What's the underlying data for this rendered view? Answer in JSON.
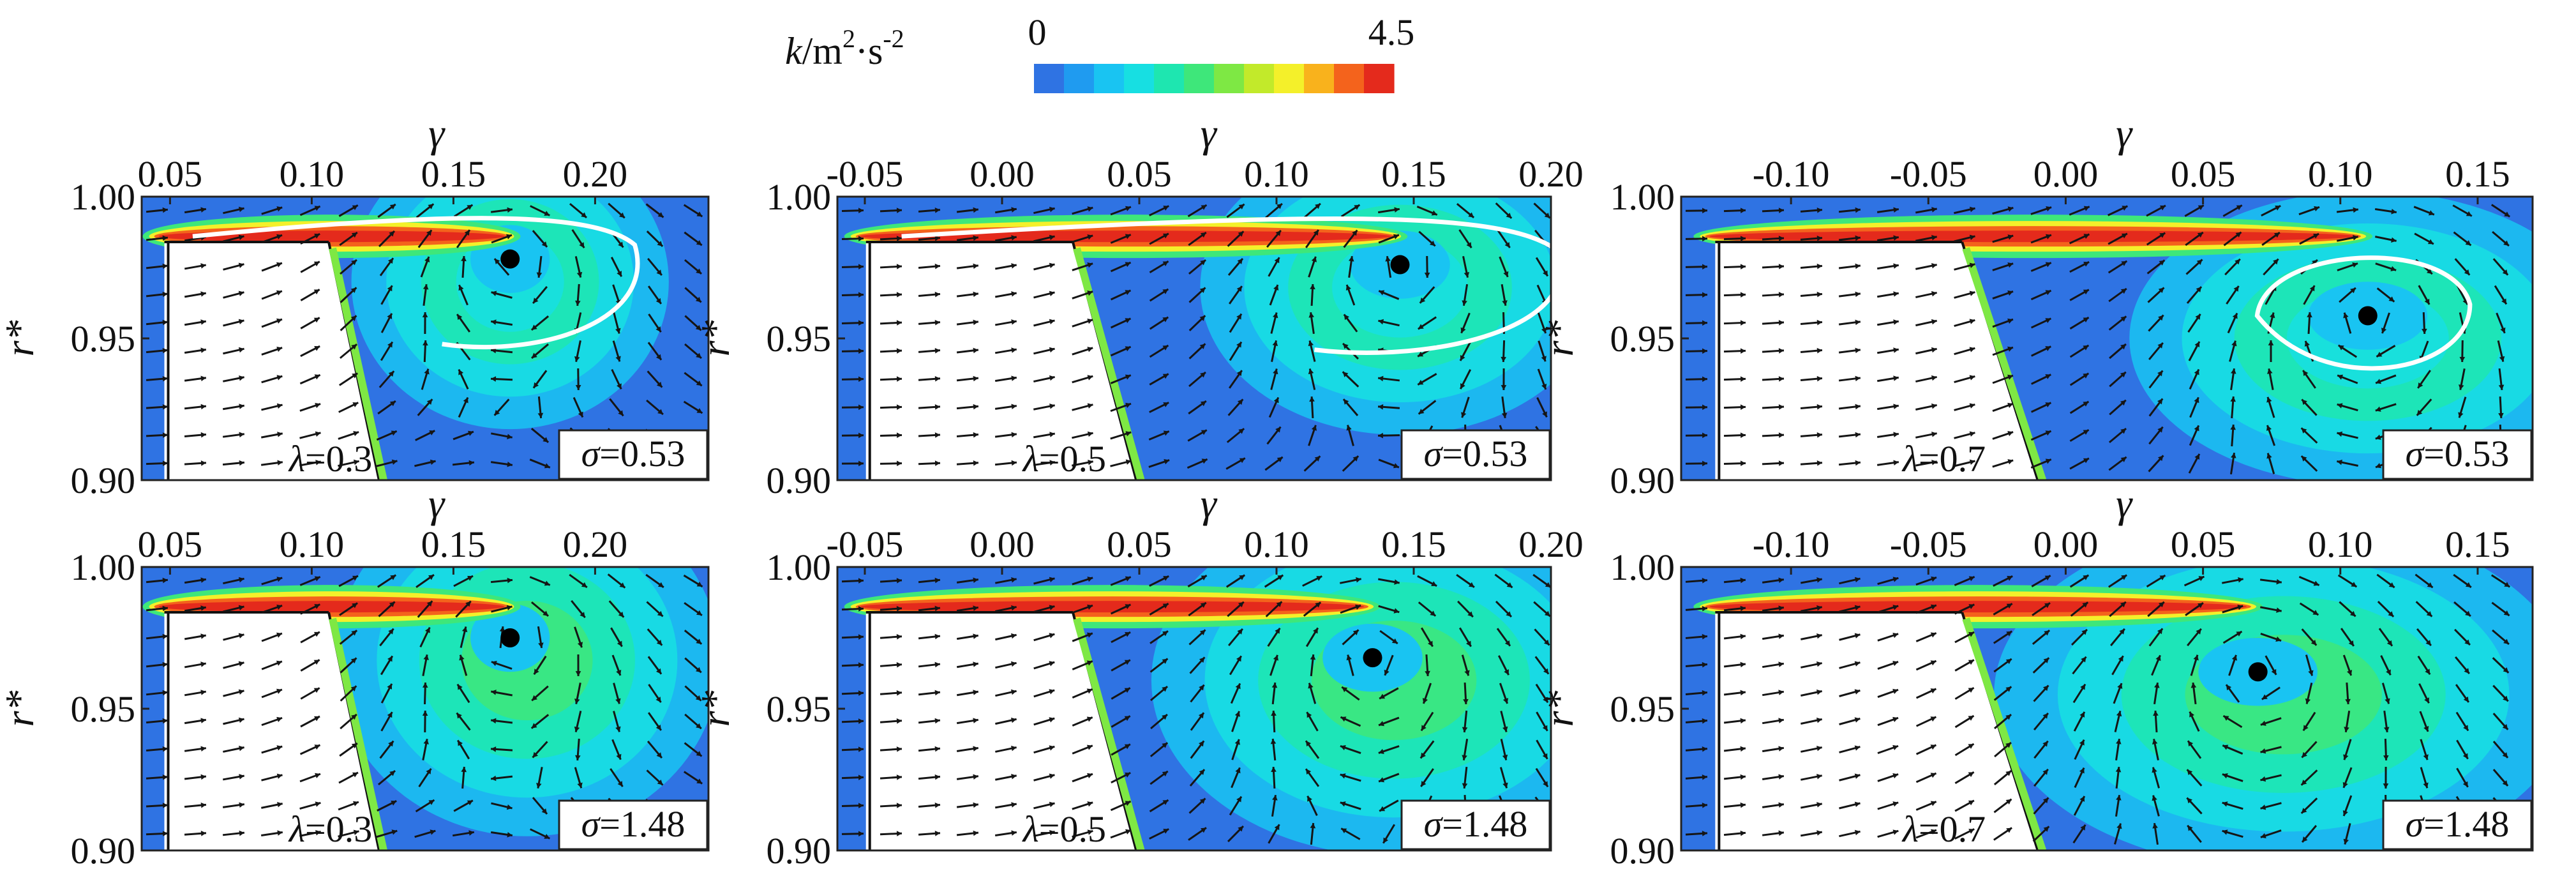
{
  "colorbar": {
    "min_label": "0",
    "max_label": "4.5",
    "range": [
      0,
      4.5
    ],
    "title_symbol": "k",
    "title_units": "/m",
    "title_sup1": "2",
    "title_mid": "·s",
    "title_sup2": "-2",
    "colors": [
      "#2f73e3",
      "#1f9bf0",
      "#19c4f2",
      "#17dfe2",
      "#1ee6b0",
      "#3ee77a",
      "#7ee844",
      "#c2ea2a",
      "#f4f02a",
      "#f9b21c",
      "#f4631c",
      "#e42a1c"
    ]
  },
  "axis_labels": {
    "x": "γ",
    "y": "r*"
  },
  "chart_data": [
    {
      "type": "heatmap",
      "row": 0,
      "col": 0,
      "xlim": [
        0.04,
        0.24
      ],
      "ylim": [
        0.9,
        1.0
      ],
      "xticks": [
        "0.05",
        "0.10",
        "0.15",
        "0.20"
      ],
      "yticks": [
        "1.00",
        "0.95",
        "0.90"
      ],
      "lambda": "0.3",
      "sigma": "0.53",
      "vortex_core": {
        "x": 0.17,
        "y": 0.978
      },
      "has_outline": true
    },
    {
      "type": "heatmap",
      "row": 0,
      "col": 1,
      "xlim": [
        -0.06,
        0.2
      ],
      "ylim": [
        0.9,
        1.0
      ],
      "xticks": [
        "-0.05",
        "0.00",
        "0.05",
        "0.10",
        "0.15",
        "0.20"
      ],
      "yticks": [
        "1.00",
        "0.95",
        "0.90"
      ],
      "lambda": "0.5",
      "sigma": "0.53",
      "vortex_core": {
        "x": 0.145,
        "y": 0.976
      },
      "has_outline": true
    },
    {
      "type": "heatmap",
      "row": 0,
      "col": 2,
      "xlim": [
        -0.14,
        0.17
      ],
      "ylim": [
        0.9,
        1.0
      ],
      "xticks": [
        "-0.10",
        "-0.05",
        "0.00",
        "0.05",
        "0.10",
        "0.15"
      ],
      "yticks": [
        "1.00",
        "0.95",
        "0.90"
      ],
      "lambda": "0.7",
      "sigma": "0.53",
      "vortex_core": {
        "x": 0.11,
        "y": 0.958
      },
      "has_outline": true
    },
    {
      "type": "heatmap",
      "row": 1,
      "col": 0,
      "xlim": [
        0.04,
        0.24
      ],
      "ylim": [
        0.9,
        1.0
      ],
      "xticks": [
        "0.05",
        "0.10",
        "0.15",
        "0.20"
      ],
      "yticks": [
        "1.00",
        "0.95",
        "0.90"
      ],
      "lambda": "0.3",
      "sigma": "1.48",
      "vortex_core": {
        "x": 0.17,
        "y": 0.975
      },
      "has_outline": false
    },
    {
      "type": "heatmap",
      "row": 1,
      "col": 1,
      "xlim": [
        -0.06,
        0.2
      ],
      "ylim": [
        0.9,
        1.0
      ],
      "xticks": [
        "-0.05",
        "0.00",
        "0.05",
        "0.10",
        "0.15",
        "0.20"
      ],
      "yticks": [
        "1.00",
        "0.95",
        "0.90"
      ],
      "lambda": "0.5",
      "sigma": "1.48",
      "vortex_core": {
        "x": 0.135,
        "y": 0.968
      },
      "has_outline": false
    },
    {
      "type": "heatmap",
      "row": 1,
      "col": 2,
      "xlim": [
        -0.14,
        0.17
      ],
      "ylim": [
        0.9,
        1.0
      ],
      "xticks": [
        "-0.10",
        "-0.05",
        "0.00",
        "0.05",
        "0.10",
        "0.15"
      ],
      "yticks": [
        "1.00",
        "0.95",
        "0.90"
      ],
      "lambda": "0.7",
      "sigma": "1.48",
      "vortex_core": {
        "x": 0.07,
        "y": 0.963
      },
      "has_outline": false
    }
  ]
}
